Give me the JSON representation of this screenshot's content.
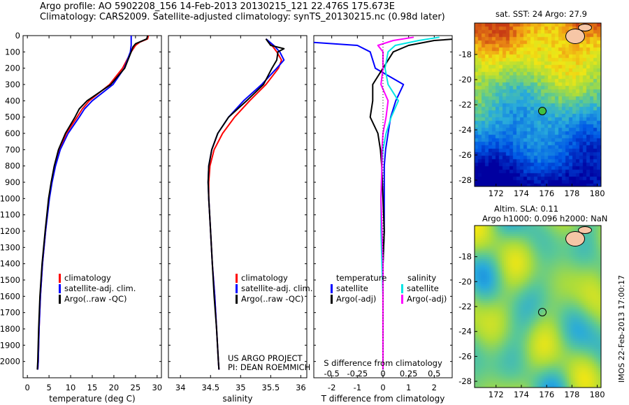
{
  "header": {
    "line1": "Argo profile: AO 5902208_156 14-Feb-2013 20130215_121 22.476S 175.673E",
    "line2": "Climatology: CARS2009. Satellite-adjusted climatology: synTS_20130215.nc (0.98d later)"
  },
  "colors": {
    "climatology": "#ff0000",
    "satellite": "#0000ff",
    "argo": "#000000",
    "sat_salinity": "#00e5e5",
    "argo_salinity": "#ff00ff",
    "land": "#f6c6a6"
  },
  "depth_ticks": [
    "0",
    "100",
    "200",
    "300",
    "400",
    "500",
    "600",
    "700",
    "800",
    "900",
    "1000",
    "1100",
    "1200",
    "1300",
    "1400",
    "1500",
    "1600",
    "1700",
    "1800",
    "1900",
    "2000"
  ],
  "watermark": {
    "line1": "US ARGO PROJECT",
    "line2": "PI: DEAN ROEMMICH",
    "imos": "IMOS 22-Feb-2013 17:00:17"
  },
  "chart_data": [
    {
      "type": "line",
      "title": "",
      "xlabel": "temperature (deg C)",
      "ylabel": "",
      "xlim": [
        -1,
        31
      ],
      "ylim": [
        2100,
        0
      ],
      "xticks": [
        "0",
        "5",
        "10",
        "15",
        "20",
        "25",
        "30"
      ],
      "legend": {
        "placement": "bottom-left",
        "entries": [
          "climatology",
          "satellite-adj. clim.",
          "Argo(..raw -QC)"
        ]
      },
      "series": [
        {
          "name": "climatology",
          "color": "#ff0000",
          "depth": [
            0,
            20,
            40,
            60,
            100,
            200,
            300,
            400,
            450,
            500,
            600,
            700,
            800,
            900,
            1000,
            1200,
            1400,
            1600,
            1800,
            2000,
            2050
          ],
          "values": [
            28.0,
            27.8,
            26.0,
            25.0,
            24.0,
            22.0,
            19.0,
            14.3,
            12.7,
            11.5,
            9.0,
            7.4,
            6.3,
            5.6,
            5.0,
            4.2,
            3.5,
            3.0,
            2.7,
            2.5,
            2.4
          ]
        },
        {
          "name": "satellite-adj. clim.",
          "color": "#0000ff",
          "depth": [
            0,
            20,
            40,
            60,
            100,
            200,
            300,
            400,
            450,
            500,
            600,
            700,
            800,
            900,
            1000,
            1200,
            1400,
            1600,
            1800,
            2000,
            2050
          ],
          "values": [
            24.0,
            24.0,
            24.0,
            24.0,
            23.8,
            22.4,
            19.8,
            15.0,
            13.2,
            12.0,
            9.4,
            7.6,
            6.5,
            5.7,
            5.1,
            4.2,
            3.5,
            3.0,
            2.7,
            2.5,
            2.4
          ]
        },
        {
          "name": "Argo(..raw -QC)",
          "color": "#000000",
          "depth": [
            0,
            20,
            50,
            70,
            100,
            200,
            300,
            400,
            450,
            500,
            600,
            700,
            800,
            900,
            1000,
            1200,
            1400,
            1600,
            1800,
            2000,
            2050
          ],
          "values": [
            27.8,
            27.6,
            25.0,
            24.4,
            24.0,
            22.5,
            19.3,
            13.8,
            12.0,
            11.0,
            8.8,
            7.2,
            6.2,
            5.5,
            4.9,
            4.1,
            3.4,
            2.9,
            2.6,
            2.4,
            2.3
          ]
        }
      ]
    },
    {
      "type": "line",
      "title": "",
      "xlabel": "salinity",
      "ylabel": "",
      "xlim": [
        33.8,
        36.1
      ],
      "ylim": [
        2100,
        0
      ],
      "xticks": [
        "34",
        "34.5",
        "35",
        "35.5",
        "36"
      ],
      "legend": {
        "placement": "bottom-right",
        "entries": [
          "climatology",
          "satellite-adj. clim.",
          "Argo(..raw -QC)"
        ]
      },
      "series": [
        {
          "name": "climatology",
          "color": "#ff0000",
          "depth": [
            20,
            60,
            100,
            150,
            200,
            300,
            400,
            500,
            600,
            700,
            800,
            900,
            1000,
            1200,
            1400,
            1600,
            1800,
            2000,
            2050
          ],
          "values": [
            35.42,
            35.52,
            35.6,
            35.68,
            35.63,
            35.42,
            35.15,
            34.9,
            34.7,
            34.56,
            34.49,
            34.47,
            34.47,
            34.5,
            34.53,
            34.57,
            34.6,
            34.63,
            34.64
          ]
        },
        {
          "name": "satellite-adj. clim.",
          "color": "#0000ff",
          "depth": [
            20,
            60,
            100,
            150,
            200,
            300,
            400,
            500,
            600,
            700,
            800,
            900,
            1000,
            1200,
            1400,
            1600,
            1800,
            2000,
            2050
          ],
          "values": [
            35.42,
            35.55,
            35.65,
            35.72,
            35.6,
            35.35,
            35.05,
            34.8,
            34.62,
            34.52,
            34.47,
            34.46,
            34.47,
            34.5,
            34.53,
            34.57,
            34.6,
            34.63,
            34.64
          ]
        },
        {
          "name": "Argo(..raw -QC)",
          "color": "#000000",
          "depth": [
            20,
            60,
            80,
            100,
            150,
            200,
            300,
            400,
            500,
            600,
            700,
            800,
            900,
            1000,
            1200,
            1400,
            1600,
            1800,
            2000,
            2050
          ],
          "values": [
            35.42,
            35.5,
            35.72,
            35.62,
            35.6,
            35.52,
            35.38,
            35.1,
            34.8,
            34.62,
            34.52,
            34.47,
            34.46,
            34.47,
            34.5,
            34.53,
            34.56,
            34.6,
            34.63,
            34.64
          ]
        }
      ]
    },
    {
      "type": "line",
      "title": "",
      "xlabel": "T difference from climatology",
      "ylabel": "",
      "xlim": [
        -2.7,
        2.7
      ],
      "ylim": [
        2100,
        0
      ],
      "xticks": [
        "-2",
        "-1",
        "0",
        "1",
        "2"
      ],
      "xlabel_top": "S difference from climatology",
      "xticks_salinity": [
        "-0.5",
        "-0.25",
        "0",
        "0.25",
        "0.5"
      ],
      "legend": {
        "placement": "bottom",
        "groups": [
          "temperature",
          "salinity"
        ],
        "entries": [
          "satellite",
          "Argo(-adj)",
          "satellite",
          "Argo(-adj)"
        ]
      },
      "series": [
        {
          "name": "satellite",
          "group": "temperature",
          "color": "#0000ff",
          "depth": [
            10,
            30,
            60,
            100,
            200,
            300,
            400,
            500,
            600,
            700,
            800,
            1000,
            1200,
            1400,
            1600,
            1800,
            2050
          ],
          "values": [
            -4.0,
            -3.8,
            -1.0,
            -0.5,
            -0.3,
            0.8,
            0.5,
            0.3,
            0.2,
            0.1,
            0.05,
            0.05,
            0.05,
            0.0,
            0.0,
            0.0,
            0.0
          ]
        },
        {
          "name": "Argo(-adj)",
          "group": "temperature",
          "color": "#000000",
          "depth": [
            10,
            30,
            60,
            100,
            200,
            300,
            400,
            500,
            600,
            700,
            800,
            1000,
            1200,
            1400,
            1600,
            1800,
            2050
          ],
          "values": [
            3.8,
            2.0,
            1.0,
            0.4,
            0.0,
            -0.4,
            -0.4,
            -0.5,
            -0.2,
            -0.1,
            -0.05,
            0.0,
            0.05,
            0.0,
            0.0,
            0.0,
            0.0
          ]
        },
        {
          "name": "satellite",
          "group": "salinity",
          "color": "#00e5e5",
          "depth": [
            10,
            30,
            60,
            100,
            200,
            300,
            400,
            500,
            600,
            700,
            800,
            1000,
            1200,
            1400,
            1600,
            1800,
            2050
          ],
          "values": [
            0.55,
            0.35,
            0.12,
            0.05,
            0.02,
            0.05,
            0.15,
            0.08,
            0.03,
            0.0,
            -0.01,
            -0.02,
            -0.02,
            -0.01,
            0.0,
            0.0,
            0.0
          ]
        },
        {
          "name": "Argo(-adj)",
          "group": "salinity",
          "color": "#ff00ff",
          "depth": [
            10,
            30,
            60,
            100,
            200,
            300,
            400,
            500,
            600,
            700,
            800,
            1000,
            1200,
            1400,
            1600,
            1800,
            2050
          ],
          "values": [
            0.3,
            0.1,
            -0.05,
            0.0,
            0.0,
            -0.02,
            0.05,
            0.03,
            0.0,
            -0.01,
            -0.01,
            -0.02,
            -0.01,
            0.0,
            0.0,
            0.0,
            0.0
          ]
        }
      ]
    },
    {
      "type": "heatmap",
      "title": "sat. SST: 24 Argo: 27.9",
      "xlabel": "",
      "ylabel": "",
      "xlim": [
        170.3,
        180.3
      ],
      "ylim": [
        -28.5,
        -15.5
      ],
      "xticks": [
        "172",
        "174",
        "176",
        "178",
        "180"
      ],
      "yticks": [
        "-18",
        "-20",
        "-22",
        "-24",
        "-26",
        "-28"
      ],
      "marker": {
        "lon": 175.673,
        "lat": -22.476
      }
    },
    {
      "type": "heatmap",
      "title": "Altim. SLA: 0.11",
      "subtitle": "Argo h1000: 0.096 h2000: NaN",
      "xlabel": "",
      "ylabel": "",
      "xlim": [
        170.3,
        180.3
      ],
      "ylim": [
        -28.5,
        -15.5
      ],
      "xticks": [
        "172",
        "174",
        "176",
        "178",
        "180"
      ],
      "yticks": [
        "-18",
        "-20",
        "-22",
        "-24",
        "-26",
        "-28"
      ],
      "marker": {
        "lon": 175.673,
        "lat": -22.476
      }
    }
  ]
}
